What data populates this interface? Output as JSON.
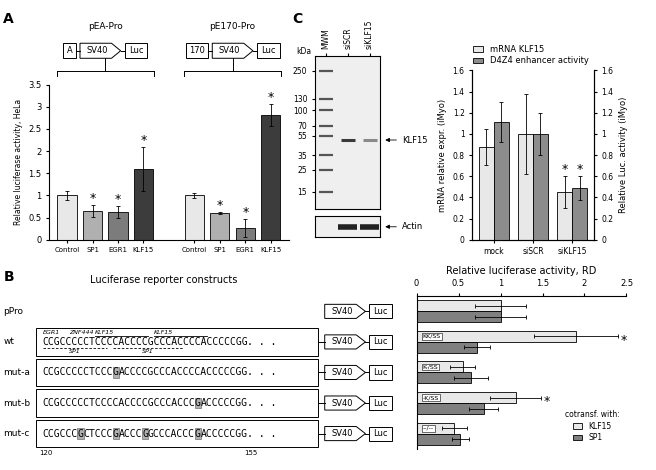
{
  "panel_labels": [
    "A",
    "B",
    "C"
  ],
  "chart_data": [
    {
      "type": "bar",
      "y_label": "Relative luciferase activity, HeLa",
      "categories": [
        "Control",
        "SP1",
        "EGR1",
        "KLF15"
      ],
      "colors": [
        "#e8e8e8",
        "#b0b0b0",
        "#7c7c7c",
        "#3c3c3c"
      ],
      "groups": [
        {
          "name": "pEA-Pro",
          "construct": [
            {
              "text": "A",
              "shape": "box"
            },
            {
              "text": "SV40",
              "shape": "arrow"
            },
            {
              "text": "Luc",
              "shape": "box"
            }
          ],
          "values": [
            1,
            0.65,
            0.63,
            1.6
          ],
          "errors": [
            0.1,
            0.13,
            0.14,
            0.5
          ],
          "significant": [
            false,
            true,
            true,
            true
          ]
        },
        {
          "name": "pE170-Pro",
          "construct": [
            {
              "text": "170",
              "shape": "box"
            },
            {
              "text": "SV40",
              "shape": "arrow"
            },
            {
              "text": "Luc",
              "shape": "box"
            }
          ],
          "values": [
            1,
            0.6,
            0.27,
            2.82
          ],
          "errors": [
            0.05,
            0.03,
            0.2,
            0.25
          ],
          "significant": [
            false,
            true,
            true,
            true
          ]
        }
      ],
      "significance_label": "*",
      "ylim": [
        0,
        3.5
      ],
      "yticks": [
        0,
        0.5,
        1,
        1.5,
        2,
        2.5,
        3,
        3.5
      ]
    },
    {
      "type": "bar",
      "orientation": "horizontal",
      "x_label": "Relative luciferase activity, RD",
      "categories": [
        "pPro",
        "wt",
        "mut-a",
        "mut-b",
        "mut-c"
      ],
      "series": [
        {
          "name": "KLF15",
          "color": "#e8e8e8",
          "values": [
            1,
            1.9,
            0.55,
            1.18,
            0.45
          ],
          "errors": [
            0.3,
            0.5,
            0.15,
            0.3,
            0.15
          ],
          "significant": [
            false,
            true,
            false,
            true,
            false
          ]
        },
        {
          "name": "SP1",
          "color": "#808080",
          "values": [
            1,
            0.72,
            0.65,
            0.8,
            0.52
          ],
          "errors": [
            0.3,
            0.15,
            0.2,
            0.17,
            0.1
          ],
          "significant": [
            false,
            false,
            false,
            false,
            false
          ]
        }
      ],
      "bar_labels": [
        null,
        "KK/SS",
        "K-/SS",
        "-K/SS",
        "--/--"
      ],
      "significance_label": "*",
      "xlim": [
        0,
        2.5
      ],
      "xticks": [
        0,
        0.5,
        1,
        1.5,
        2,
        2.5
      ],
      "legend": "lower right",
      "legend_title": "cotransf. with:",
      "tick_labels": "x",
      "constructs": {
        "header": "Luciferase reporter constructs",
        "position_labels": [
          120,
          155
        ],
        "rows": [
          {
            "sequence": null,
            "elements": [
              {
                "text": "SV40",
                "shape": "arrow"
              },
              {
                "text": "Luc",
                "shape": "box"
              }
            ]
          },
          {
            "sequence": [
              {
                "text": "CCGCCCCCTCCCCACCCCGCCCACCCCACCCCCGG"
              },
              {
                "text": ". . ."
              }
            ],
            "sites_above": [
              "EGR1",
              "ZNF444",
              "KLF15",
              "KLF15"
            ],
            "sites_below": [
              "SP1",
              "SP1"
            ],
            "elements": [
              {
                "text": "SV40",
                "shape": "arrow"
              },
              {
                "text": "Luc",
                "shape": "box"
              }
            ]
          },
          {
            "sequence": [
              {
                "text": "CCGCCCCCTCCC"
              },
              {
                "text": "G",
                "mutated": true
              },
              {
                "text": "ACCCCGCCCACCCCACCCCCGG"
              },
              {
                "text": ". . ."
              }
            ],
            "elements": [
              {
                "text": "SV40",
                "shape": "arrow"
              },
              {
                "text": "Luc",
                "shape": "box"
              }
            ]
          },
          {
            "sequence": [
              {
                "text": "CCGCCCCCTCCCCACCCCGCCCACCC"
              },
              {
                "text": "G",
                "mutated": true
              },
              {
                "text": "ACCCCCGG"
              },
              {
                "text": ". . ."
              }
            ],
            "elements": [
              {
                "text": "SV40",
                "shape": "arrow"
              },
              {
                "text": "Luc",
                "shape": "box"
              }
            ]
          },
          {
            "sequence": [
              {
                "text": "CCGCCC"
              },
              {
                "text": "G",
                "mutated": true
              },
              {
                "text": "CTCCC"
              },
              {
                "text": "G",
                "mutated": true
              },
              {
                "text": "ACCC"
              },
              {
                "text": "G",
                "mutated": true
              },
              {
                "text": "GCCCACCC"
              },
              {
                "text": "G",
                "mutated": true
              },
              {
                "text": "ACCCCCGG"
              },
              {
                "text": ". . ."
              }
            ],
            "elements": [
              {
                "text": "SV40",
                "shape": "arrow"
              },
              {
                "text": "Luc",
                "shape": "box"
              }
            ]
          }
        ]
      }
    },
    {
      "type": "bar",
      "categories": [
        "mock",
        "siSCR",
        "siKLF15"
      ],
      "y_label": "mRNA relative expr. (iMyo)",
      "y2_label": "Relative Luc. activity (iMyo)",
      "series": [
        {
          "name": "mRNA KLF15",
          "color": "#e8e8e8",
          "values": [
            0.88,
            1,
            0.45
          ],
          "errors": [
            0.17,
            0.38,
            0.15
          ],
          "significant": [
            false,
            false,
            true
          ]
        },
        {
          "name": "D4Z4 enhancer activity",
          "color": "#8c8c8c",
          "axis": "y2",
          "values": [
            1.11,
            1,
            0.49
          ],
          "errors": [
            0.19,
            0.2,
            0.11
          ],
          "significant": [
            false,
            false,
            true
          ]
        }
      ],
      "significance_label": "*",
      "legend": "upper right",
      "ylim": [
        0,
        1.6
      ],
      "yticks": [
        0,
        0.2,
        0.4,
        0.6,
        0.8,
        1,
        1.2,
        1.4,
        1.6
      ],
      "y2lim": [
        0,
        1.6
      ],
      "y2ticks": [
        0,
        0.2,
        0.4,
        0.6,
        0.8,
        1,
        1.2,
        1.4,
        1.6
      ]
    }
  ],
  "blot": {
    "kda_label": "kDa",
    "lanes": [
      "MWM",
      "siSCR",
      "siKLF15"
    ],
    "markers": [
      250,
      130,
      100,
      70,
      55,
      35,
      25,
      15
    ],
    "ylim": [
      10,
      350
    ],
    "bands": [
      {
        "label": "KLF15",
        "kDa": 50,
        "lanes": [
          "siSCR",
          "siKLF15"
        ]
      }
    ],
    "loading_control": {
      "label": "Actin",
      "lanes": [
        "siSCR",
        "siKLF15"
      ]
    }
  }
}
